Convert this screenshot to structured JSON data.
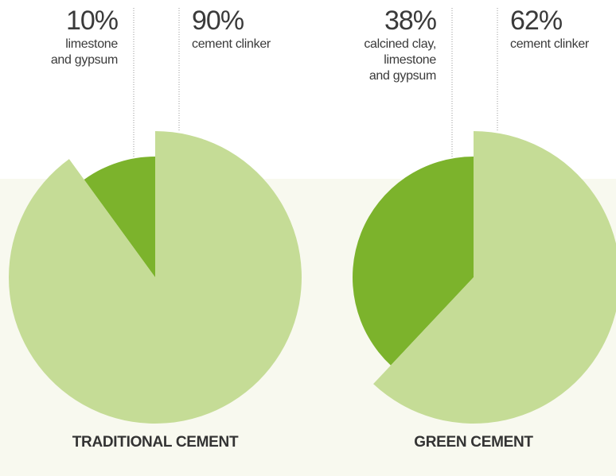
{
  "chart_data": [
    {
      "type": "pie",
      "title": "TRADITIONAL CEMENT",
      "categories": [
        "limestone\nand gypsum",
        "cement clinker"
      ],
      "values": [
        10,
        90
      ],
      "value_labels": [
        "10%",
        "90%"
      ],
      "colors": [
        "#7cb32c",
        "#c5dc96"
      ]
    },
    {
      "type": "pie",
      "title": "GREEN CEMENT",
      "categories": [
        "calcined clay,\nlimestone\nand gypsum",
        "cement clinker"
      ],
      "values": [
        38,
        62
      ],
      "value_labels": [
        "38%",
        "62%"
      ],
      "colors": [
        "#7cb32c",
        "#c5dc96"
      ]
    }
  ]
}
